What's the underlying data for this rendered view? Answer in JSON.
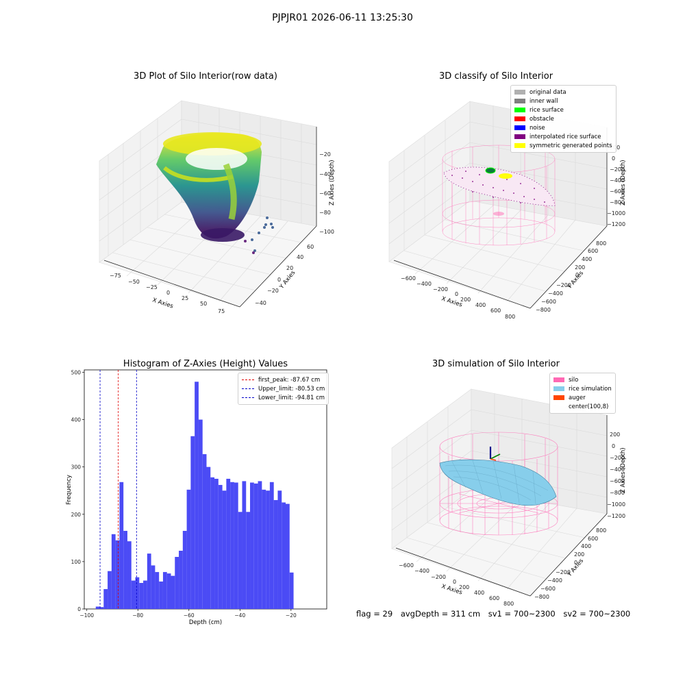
{
  "suptitle": "PJPJR01 2026-06-11 13:25:30",
  "colors": {
    "hist_bar": "#4b4bf5",
    "first_peak": "#e00000",
    "limits": "#0000c8",
    "silo": "#ff69b4",
    "rice_simulation": "#87ceeb",
    "auger": "#ff4500",
    "original_data": "#b0b0b0",
    "inner_wall": "#808080",
    "rice_surface": "#00ff00",
    "obstacle": "#ff0000",
    "noise": "#0000ff",
    "interpolated": "#800080",
    "symmetric": "#ffff00"
  },
  "chart_data": [
    {
      "type": "scatter",
      "title": "3D Plot of Silo Interior(row data)",
      "xlabel": "X Axies",
      "ylabel": "Y Axies",
      "zlabel": "Z Axies (Depth)",
      "x_ticks": [
        "−75",
        "−50",
        "−25",
        "0",
        "25",
        "50",
        "75"
      ],
      "y_ticks": [
        "−40",
        "−20",
        "0",
        "20",
        "40",
        "60"
      ],
      "z_ticks": [
        "−20",
        "−40",
        "−60",
        "−80",
        "−100"
      ],
      "colormap": "viridis"
    },
    {
      "type": "scatter",
      "title": "3D classify of Silo Interior",
      "xlabel": "X Axies",
      "ylabel": "Y Axies",
      "zlabel": "Z Axies (Depth)",
      "x_ticks": [
        "−600",
        "−400",
        "−200",
        "0",
        "200",
        "400",
        "600",
        "800"
      ],
      "y_ticks": [
        "−800",
        "−600",
        "−400",
        "−200",
        "0",
        "200",
        "400",
        "600",
        "800"
      ],
      "z_ticks": [
        "200",
        "0",
        "−200",
        "−400",
        "−600",
        "−800",
        "−1000",
        "−1200"
      ],
      "legend": [
        "original data",
        "inner wall",
        "rice surface",
        "obstacle",
        "noise",
        "interpolated rice surface",
        "symmetric generated points"
      ],
      "legend_position": "top-right"
    },
    {
      "type": "bar",
      "title": "Histogram of Z-Axies (Height) Values",
      "xlabel": "Depth (cm)",
      "ylabel": "Frequency",
      "xlim": [
        -101,
        -6
      ],
      "ylim": [
        0,
        505
      ],
      "x_ticks": [
        "−100",
        "−80",
        "−60",
        "−40",
        "−20"
      ],
      "y_ticks": [
        "0",
        "100",
        "200",
        "300",
        "400",
        "500"
      ],
      "bin_start": -96.5,
      "bin_width": 1.55,
      "values": [
        5,
        4,
        42,
        80,
        158,
        145,
        268,
        165,
        143,
        60,
        67,
        55,
        60,
        117,
        92,
        78,
        58,
        78,
        75,
        70,
        110,
        123,
        165,
        252,
        365,
        480,
        400,
        327,
        300,
        278,
        275,
        262,
        250,
        275,
        268,
        267,
        205,
        270,
        205,
        267,
        265,
        270,
        252,
        250,
        268,
        230,
        250,
        225,
        222,
        77
      ],
      "lines": [
        {
          "label": "first_peak: -87.67 cm",
          "x": -87.67,
          "color": "first_peak"
        },
        {
          "label": "Upper_limit: -80.53 cm",
          "x": -80.53,
          "color": "limits"
        },
        {
          "label": "Lower_limit: -94.81 cm",
          "x": -94.81,
          "color": "limits"
        }
      ],
      "legend_position": "top-right"
    },
    {
      "type": "area",
      "title": "3D simulation of Silo Interior",
      "xlabel": "X Axies",
      "ylabel": "Y Axies",
      "zlabel": "Z Axies (Depth)",
      "x_ticks": [
        "−600",
        "−400",
        "−200",
        "0",
        "200",
        "400",
        "600",
        "800"
      ],
      "y_ticks": [
        "−800",
        "−600",
        "−400",
        "−200",
        "0",
        "200",
        "400",
        "600",
        "800"
      ],
      "z_ticks": [
        "200",
        "0",
        "−200",
        "−400",
        "−600",
        "−800",
        "−1000",
        "−1200"
      ],
      "legend": [
        "silo",
        "rice simulation",
        "auger",
        "center(100,8)"
      ],
      "legend_position": "top-right"
    }
  ],
  "footer": {
    "flag": "flag = 29",
    "avg": "avgDepth = 311 cm",
    "sv1": "sv1 = 700~2300",
    "sv2": "sv2 = 700~2300"
  }
}
